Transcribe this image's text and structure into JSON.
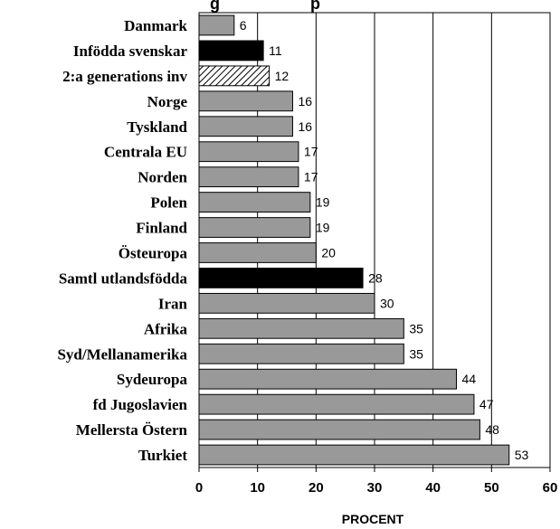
{
  "chart_data": {
    "type": "bar",
    "orientation": "horizontal",
    "title": "g                    p",
    "xlabel": "PROCENT",
    "ylabel": "",
    "xlim": [
      0,
      60
    ],
    "xticks": [
      0,
      10,
      20,
      30,
      40,
      50,
      60
    ],
    "grid": true,
    "categories": [
      "Danmark",
      "Infödda svenskar",
      "2:a generations inv",
      "Norge",
      "Tyskland",
      "Centrala EU",
      "Norden",
      "Polen",
      "Finland",
      "Östeuropa",
      "Samtl utlandsfödda",
      "Iran",
      "Afrika",
      "Syd/Mellanamerika",
      "Sydeuropa",
      "fd Jugoslavien",
      "Mellersta Östern",
      "Turkiet"
    ],
    "values": [
      6,
      11,
      12,
      16,
      16,
      17,
      17,
      19,
      19,
      20,
      28,
      30,
      35,
      35,
      44,
      47,
      48,
      53
    ],
    "bar_styles": [
      "gray",
      "black",
      "hatched",
      "gray",
      "gray",
      "gray",
      "gray",
      "gray",
      "gray",
      "gray",
      "black",
      "gray",
      "gray",
      "gray",
      "gray",
      "gray",
      "gray",
      "gray"
    ],
    "colors": {
      "gray": "#999999",
      "black": "#000000",
      "hatch_bg": "#ffffff",
      "hatch_line": "#000000"
    }
  }
}
